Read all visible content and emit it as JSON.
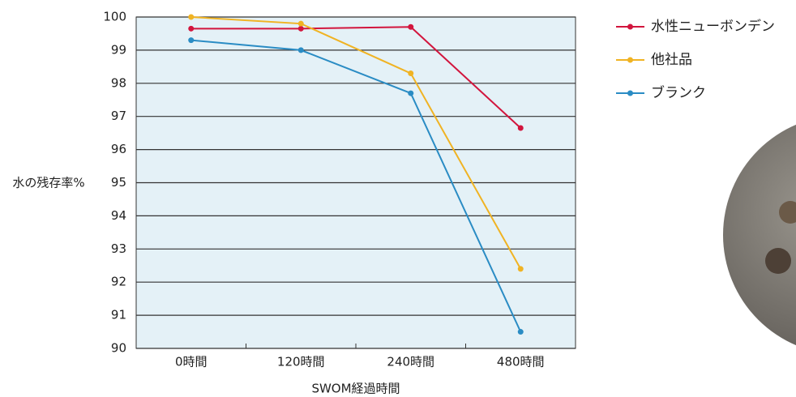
{
  "chart_data": {
    "type": "line",
    "x_label": "SWOM経過時間",
    "y_label": "水の残存率%",
    "categories": [
      "0時間",
      "120時間",
      "240時間",
      "480時間"
    ],
    "series": [
      {
        "name": "水性ニューボンデン",
        "color": "#d2153d",
        "values": [
          99.65,
          99.65,
          99.7,
          96.65
        ]
      },
      {
        "name": "他社品",
        "color": "#f0b323",
        "values": [
          100,
          99.8,
          98.3,
          92.4
        ]
      },
      {
        "name": "ブランク",
        "color": "#2a8cc4",
        "values": [
          99.3,
          99.0,
          97.7,
          90.5
        ]
      }
    ],
    "ylim": [
      90,
      100
    ],
    "yticks": [
      90,
      91,
      92,
      93,
      94,
      95,
      96,
      97,
      98,
      99,
      100
    ],
    "grid": true,
    "legend": "top-right"
  }
}
